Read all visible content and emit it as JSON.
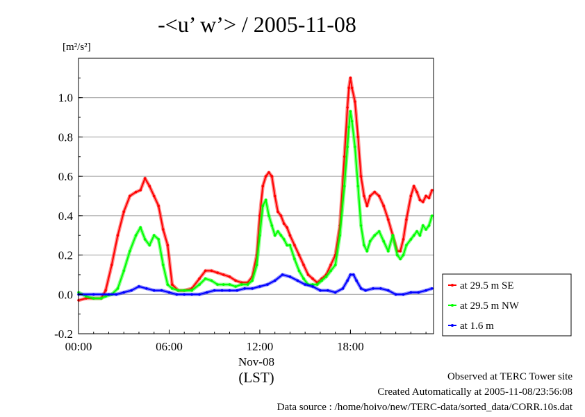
{
  "chart_data": {
    "type": "line",
    "title": "-<u’ w’> / 2005-11-08",
    "ylabel": "[m²/s²]",
    "xlabel_date": "Nov-08",
    "xlabel_unit": "(LST)",
    "xlim": [
      0,
      23.5
    ],
    "ylim": [
      -0.2,
      1.2
    ],
    "y_ticks": [
      -0.2,
      0.0,
      0.2,
      0.4,
      0.6,
      0.8,
      1.0
    ],
    "y_tick_labels": [
      "-0.2",
      "0.0",
      "0.2",
      "0.4",
      "0.6",
      "0.8",
      "1.0"
    ],
    "x_ticks": [
      0,
      6,
      12,
      18
    ],
    "x_tick_labels": [
      "00:00",
      "06:00",
      "12:00",
      "18:00"
    ],
    "grid": true,
    "legend_position": "right-outside-bottom",
    "series": [
      {
        "name": "at 29.5 m SE",
        "color": "#ff0000",
        "x": [
          0.0,
          0.5,
          1.0,
          1.5,
          1.8,
          2.2,
          2.6,
          3.0,
          3.4,
          3.8,
          4.1,
          4.4,
          4.7,
          5.0,
          5.3,
          5.6,
          5.9,
          6.2,
          6.6,
          7.0,
          7.5,
          8.0,
          8.4,
          8.8,
          9.2,
          9.6,
          10.0,
          10.4,
          10.8,
          11.2,
          11.5,
          11.8,
          12.0,
          12.2,
          12.4,
          12.6,
          12.8,
          13.0,
          13.2,
          13.4,
          13.6,
          13.8,
          14.0,
          14.3,
          14.6,
          14.9,
          15.2,
          15.5,
          15.8,
          16.1,
          16.4,
          16.7,
          17.0,
          17.3,
          17.6,
          17.8,
          17.9,
          18.0,
          18.1,
          18.3,
          18.5,
          18.7,
          18.9,
          19.1,
          19.3,
          19.6,
          19.9,
          20.2,
          20.5,
          20.8,
          21.1,
          21.3,
          21.5,
          21.7,
          22.0,
          22.2,
          22.4,
          22.6,
          22.8,
          23.0,
          23.2,
          23.4
        ],
        "y": [
          -0.03,
          -0.02,
          -0.02,
          -0.02,
          0.02,
          0.15,
          0.3,
          0.42,
          0.5,
          0.52,
          0.53,
          0.59,
          0.55,
          0.5,
          0.45,
          0.33,
          0.25,
          0.05,
          0.02,
          0.02,
          0.03,
          0.08,
          0.12,
          0.12,
          0.11,
          0.1,
          0.09,
          0.07,
          0.06,
          0.06,
          0.09,
          0.2,
          0.4,
          0.55,
          0.6,
          0.62,
          0.6,
          0.5,
          0.42,
          0.4,
          0.36,
          0.34,
          0.3,
          0.25,
          0.2,
          0.15,
          0.1,
          0.08,
          0.06,
          0.08,
          0.1,
          0.15,
          0.2,
          0.35,
          0.7,
          0.95,
          1.05,
          1.1,
          1.05,
          0.98,
          0.8,
          0.6,
          0.5,
          0.45,
          0.5,
          0.52,
          0.5,
          0.45,
          0.38,
          0.3,
          0.22,
          0.22,
          0.28,
          0.38,
          0.5,
          0.55,
          0.52,
          0.48,
          0.47,
          0.5,
          0.49,
          0.53
        ]
      },
      {
        "name": "at 29.5 m NW",
        "color": "#00ff00",
        "x": [
          0.0,
          0.5,
          1.0,
          1.5,
          1.8,
          2.2,
          2.6,
          3.0,
          3.4,
          3.8,
          4.1,
          4.4,
          4.7,
          5.0,
          5.3,
          5.6,
          5.9,
          6.2,
          6.6,
          7.0,
          7.5,
          8.0,
          8.4,
          8.8,
          9.2,
          9.6,
          10.0,
          10.4,
          10.8,
          11.2,
          11.5,
          11.8,
          12.0,
          12.2,
          12.4,
          12.6,
          12.8,
          13.0,
          13.2,
          13.4,
          13.6,
          13.8,
          14.0,
          14.3,
          14.6,
          14.9,
          15.2,
          15.5,
          15.8,
          16.1,
          16.4,
          16.7,
          17.0,
          17.3,
          17.6,
          17.8,
          17.9,
          18.0,
          18.1,
          18.3,
          18.5,
          18.7,
          18.9,
          19.1,
          19.3,
          19.6,
          19.9,
          20.2,
          20.5,
          20.8,
          21.1,
          21.3,
          21.5,
          21.7,
          22.0,
          22.2,
          22.4,
          22.6,
          22.8,
          23.0,
          23.2,
          23.4
        ],
        "y": [
          0.01,
          -0.01,
          -0.02,
          -0.02,
          -0.01,
          0.0,
          0.03,
          0.12,
          0.22,
          0.3,
          0.34,
          0.28,
          0.25,
          0.3,
          0.28,
          0.15,
          0.05,
          0.03,
          0.02,
          0.02,
          0.02,
          0.05,
          0.08,
          0.07,
          0.05,
          0.05,
          0.05,
          0.04,
          0.05,
          0.05,
          0.07,
          0.15,
          0.3,
          0.45,
          0.48,
          0.4,
          0.35,
          0.3,
          0.32,
          0.3,
          0.28,
          0.25,
          0.25,
          0.18,
          0.12,
          0.08,
          0.05,
          0.05,
          0.05,
          0.07,
          0.09,
          0.12,
          0.15,
          0.3,
          0.55,
          0.75,
          0.85,
          0.93,
          0.88,
          0.75,
          0.55,
          0.35,
          0.25,
          0.22,
          0.27,
          0.3,
          0.32,
          0.27,
          0.22,
          0.3,
          0.2,
          0.18,
          0.2,
          0.25,
          0.28,
          0.3,
          0.32,
          0.3,
          0.35,
          0.33,
          0.35,
          0.4
        ]
      },
      {
        "name": "at 1.6 m",
        "color": "#0000ff",
        "x": [
          0.0,
          1.0,
          2.0,
          2.5,
          3.0,
          3.5,
          4.0,
          4.5,
          5.0,
          5.5,
          6.0,
          6.5,
          7.0,
          7.5,
          8.0,
          8.5,
          9.0,
          9.5,
          10.0,
          10.5,
          11.0,
          11.5,
          12.0,
          12.5,
          13.0,
          13.5,
          14.0,
          14.5,
          15.0,
          15.5,
          16.0,
          16.5,
          17.0,
          17.5,
          17.8,
          18.0,
          18.2,
          18.4,
          18.7,
          19.0,
          19.5,
          20.0,
          20.5,
          21.0,
          21.5,
          22.0,
          22.5,
          23.0,
          23.4
        ],
        "y": [
          0.0,
          0.0,
          0.0,
          0.0,
          0.01,
          0.02,
          0.04,
          0.03,
          0.02,
          0.02,
          0.01,
          0.0,
          0.0,
          0.0,
          0.0,
          0.01,
          0.02,
          0.02,
          0.02,
          0.02,
          0.03,
          0.03,
          0.04,
          0.05,
          0.07,
          0.1,
          0.09,
          0.07,
          0.05,
          0.04,
          0.02,
          0.02,
          0.01,
          0.03,
          0.07,
          0.1,
          0.1,
          0.07,
          0.03,
          0.02,
          0.03,
          0.03,
          0.02,
          0.0,
          0.0,
          0.01,
          0.01,
          0.02,
          0.03
        ]
      }
    ]
  },
  "footer": {
    "line1": "Observed at TERC Tower site",
    "line2": "Created Automatically at 2005-11-08/23:56:08",
    "line3": "Data source : /home/hoivo/new/TERC-data/sorted_data/CORR.10s.dat"
  }
}
